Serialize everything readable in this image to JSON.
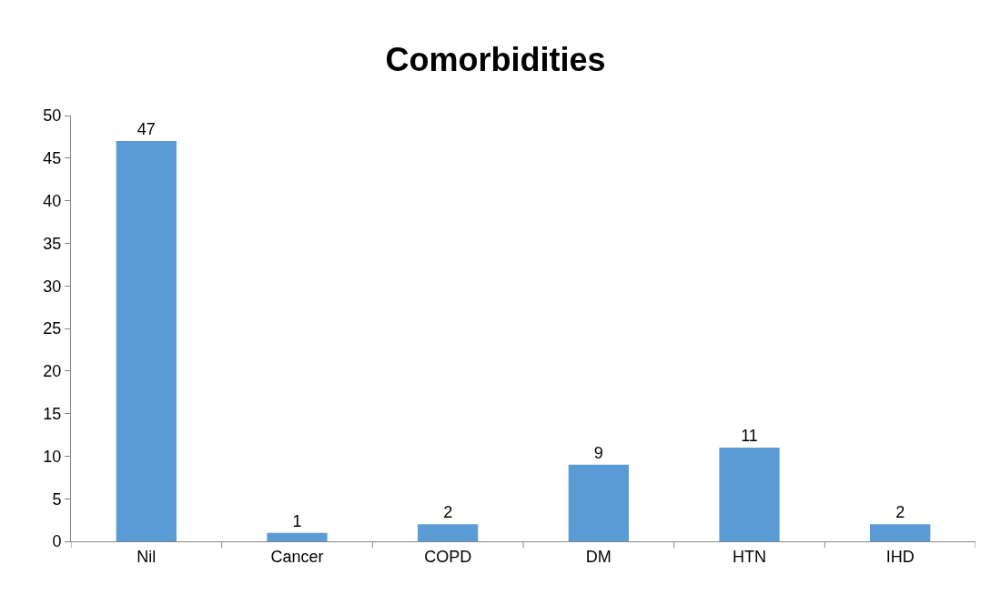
{
  "chart_data": {
    "type": "bar",
    "title": "Comorbidities",
    "categories": [
      "Nil",
      "Cancer",
      "COPD",
      "DM",
      "HTN",
      "IHD"
    ],
    "values": [
      47,
      1,
      2,
      9,
      11,
      2
    ],
    "color": "#5b9bd5",
    "ylim": [
      0,
      50
    ],
    "yticks": [
      0,
      5,
      10,
      15,
      20,
      25,
      30,
      35,
      40,
      45,
      50
    ],
    "legend": false,
    "data_labels": true
  }
}
